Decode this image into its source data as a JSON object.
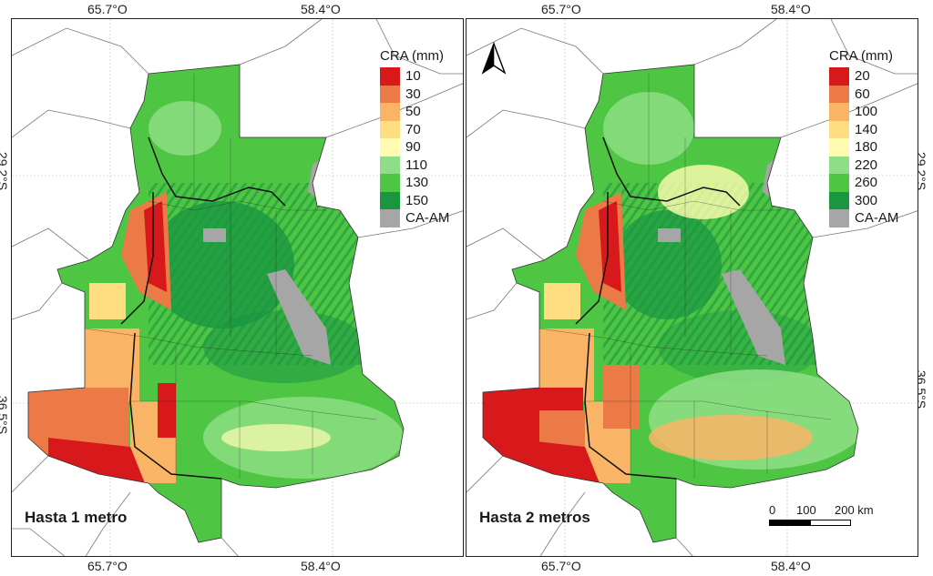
{
  "coords": {
    "lon_left": "65.7°O",
    "lon_right": "58.4°O",
    "lat_top": "29.2°S",
    "lat_bottom": "36.5°S"
  },
  "legend_left": {
    "title": "CRA (mm)",
    "items": [
      {
        "label": "10",
        "color": "#d7191c"
      },
      {
        "label": "30",
        "color": "#ec7a47"
      },
      {
        "label": "50",
        "color": "#f9b466"
      },
      {
        "label": "70",
        "color": "#fede80"
      },
      {
        "label": "90",
        "color": "#fffcb2"
      },
      {
        "label": "110",
        "color": "#8fde87"
      },
      {
        "label": "130",
        "color": "#4fc643"
      },
      {
        "label": "150",
        "color": "#1a9641"
      },
      {
        "label": "CA-AM",
        "color": "#a6a6a6"
      }
    ]
  },
  "legend_right": {
    "title": "CRA (mm)",
    "items": [
      {
        "label": "20",
        "color": "#d7191c"
      },
      {
        "label": "60",
        "color": "#ec7a47"
      },
      {
        "label": "100",
        "color": "#f9b466"
      },
      {
        "label": "140",
        "color": "#fede80"
      },
      {
        "label": "180",
        "color": "#fffcb2"
      },
      {
        "label": "220",
        "color": "#8fde87"
      },
      {
        "label": "260",
        "color": "#4fc643"
      },
      {
        "label": "300",
        "color": "#1a9641"
      },
      {
        "label": "CA-AM",
        "color": "#a6a6a6"
      }
    ]
  },
  "panels": {
    "left_label": "Hasta 1 metro",
    "right_label": "Hasta 2 metros"
  },
  "scalebar": {
    "t0": "0",
    "t1": "100",
    "t2": "200 km"
  },
  "north_arrow": "north-arrow-icon"
}
